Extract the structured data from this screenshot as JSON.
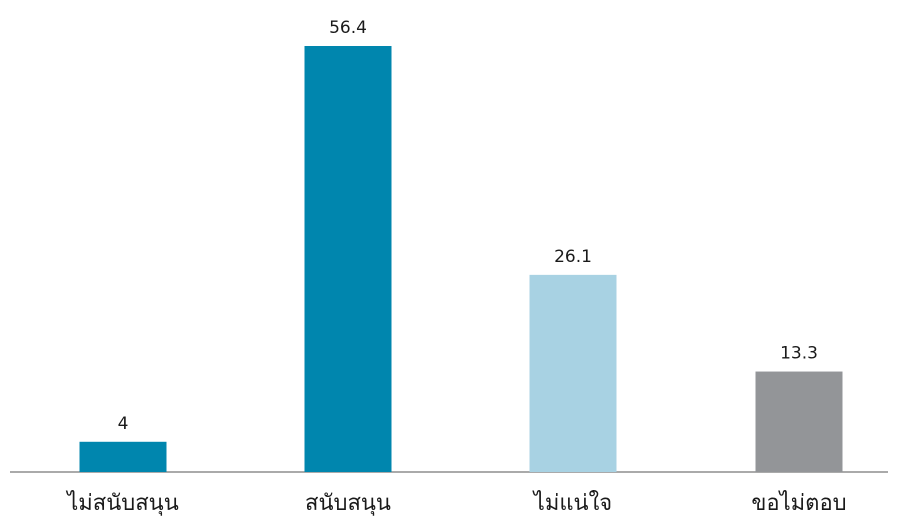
{
  "chart_data": {
    "type": "bar",
    "title": "",
    "xlabel": "",
    "ylabel": "",
    "categories": [
      "ไม่สนับสนุน",
      "สนับสนุน",
      "ไม่แน่ใจ",
      "ขอไม่ตอบ"
    ],
    "values": [
      4,
      56.4,
      26.1,
      13.3
    ],
    "value_labels": [
      "4",
      "56.4",
      "26.1",
      "13.3"
    ],
    "colors": [
      "#0086ae",
      "#0086ae",
      "#a8d2e3",
      "#939598"
    ],
    "ylim": [
      0,
      56.4
    ],
    "grid": false,
    "legend": "none"
  }
}
